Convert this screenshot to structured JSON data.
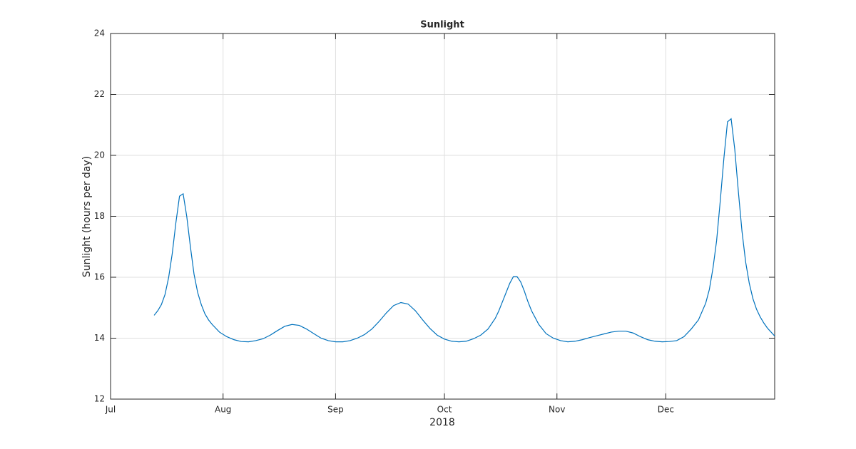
{
  "chart_data": {
    "type": "line",
    "title": "Sunlight",
    "xlabel": "2018",
    "ylabel": "Sunlight (hours per day)",
    "x": [
      12,
      13,
      14,
      15,
      16,
      17,
      18,
      19,
      20,
      21,
      22,
      23,
      24,
      25,
      26,
      27,
      28,
      30,
      32,
      34,
      36,
      38,
      40,
      42,
      44,
      46,
      48,
      50,
      52,
      54,
      56,
      58,
      60,
      62,
      64,
      66,
      68,
      70,
      72,
      74,
      76,
      78,
      80,
      82,
      84,
      86,
      88,
      90,
      92,
      94,
      96,
      98,
      100,
      102,
      104,
      106,
      107,
      108,
      109,
      110,
      111,
      112,
      113,
      114,
      115,
      116,
      118,
      120,
      122,
      124,
      126,
      128,
      130,
      132,
      134,
      136,
      138,
      140,
      142,
      144,
      146,
      148,
      150,
      152,
      154,
      156,
      158,
      160,
      162,
      164,
      165,
      166,
      167,
      168,
      169,
      170,
      171,
      172,
      173,
      174,
      175,
      176,
      177,
      178,
      179,
      180,
      181,
      182,
      183
    ],
    "series": [
      {
        "name": "Sunlight",
        "color": "#0072bd",
        "values": [
          14.75,
          14.9,
          15.1,
          15.43,
          15.99,
          16.78,
          17.79,
          18.66,
          18.74,
          17.99,
          17.0,
          16.1,
          15.5,
          15.1,
          14.8,
          14.6,
          14.45,
          14.2,
          14.05,
          13.95,
          13.89,
          13.88,
          13.92,
          13.98,
          14.1,
          14.25,
          14.39,
          14.45,
          14.42,
          14.3,
          14.15,
          14.0,
          13.92,
          13.88,
          13.88,
          13.92,
          14.0,
          14.12,
          14.3,
          14.55,
          14.83,
          15.07,
          15.17,
          15.12,
          14.9,
          14.6,
          14.32,
          14.1,
          13.97,
          13.9,
          13.88,
          13.9,
          13.98,
          14.1,
          14.3,
          14.65,
          14.9,
          15.2,
          15.5,
          15.8,
          16.02,
          16.02,
          15.85,
          15.55,
          15.2,
          14.9,
          14.45,
          14.15,
          14.0,
          13.92,
          13.88,
          13.9,
          13.95,
          14.02,
          14.08,
          14.14,
          14.2,
          14.23,
          14.23,
          14.17,
          14.05,
          13.95,
          13.9,
          13.88,
          13.89,
          13.92,
          14.05,
          14.3,
          14.6,
          15.15,
          15.6,
          16.3,
          17.2,
          18.5,
          19.9,
          21.1,
          21.2,
          20.2,
          18.8,
          17.5,
          16.5,
          15.8,
          15.3,
          14.95,
          14.7,
          14.5,
          14.33,
          14.2,
          14.07
        ]
      }
    ],
    "xlim": [
      0,
      183
    ],
    "xticks": [
      {
        "value": 0,
        "label": "Jul"
      },
      {
        "value": 31,
        "label": "Aug"
      },
      {
        "value": 62,
        "label": "Sep"
      },
      {
        "value": 92,
        "label": "Oct"
      },
      {
        "value": 123,
        "label": "Nov"
      },
      {
        "value": 153,
        "label": "Dec"
      }
    ],
    "ylim": [
      12,
      24
    ],
    "yticks": [
      12,
      14,
      16,
      18,
      20,
      22,
      24
    ],
    "grid": true
  }
}
